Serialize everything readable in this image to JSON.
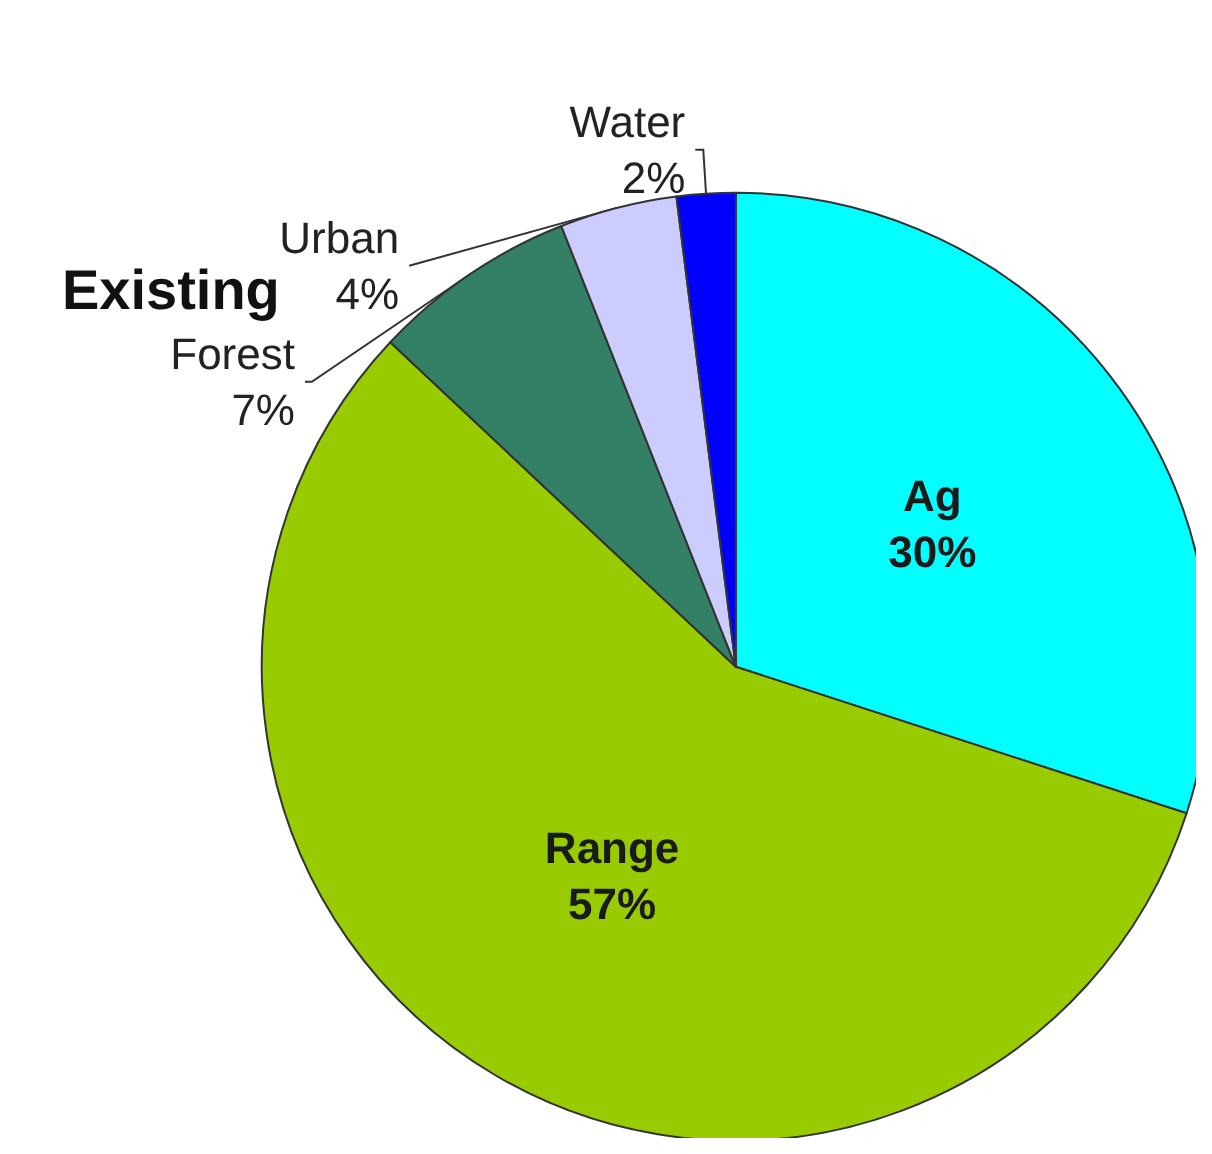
{
  "chart_data": {
    "type": "pie",
    "title": "Existing",
    "categories": [
      "Ag",
      "Range",
      "Forest",
      "Urban",
      "Water"
    ],
    "values": [
      30,
      57,
      7,
      4,
      2
    ],
    "value_labels": [
      "30%",
      "57%",
      "7%",
      "4%",
      "2%"
    ],
    "colors": [
      "#00ffff",
      "#99cc00",
      "#338066",
      "#ccccff",
      "#0000ff"
    ],
    "legend": false
  }
}
